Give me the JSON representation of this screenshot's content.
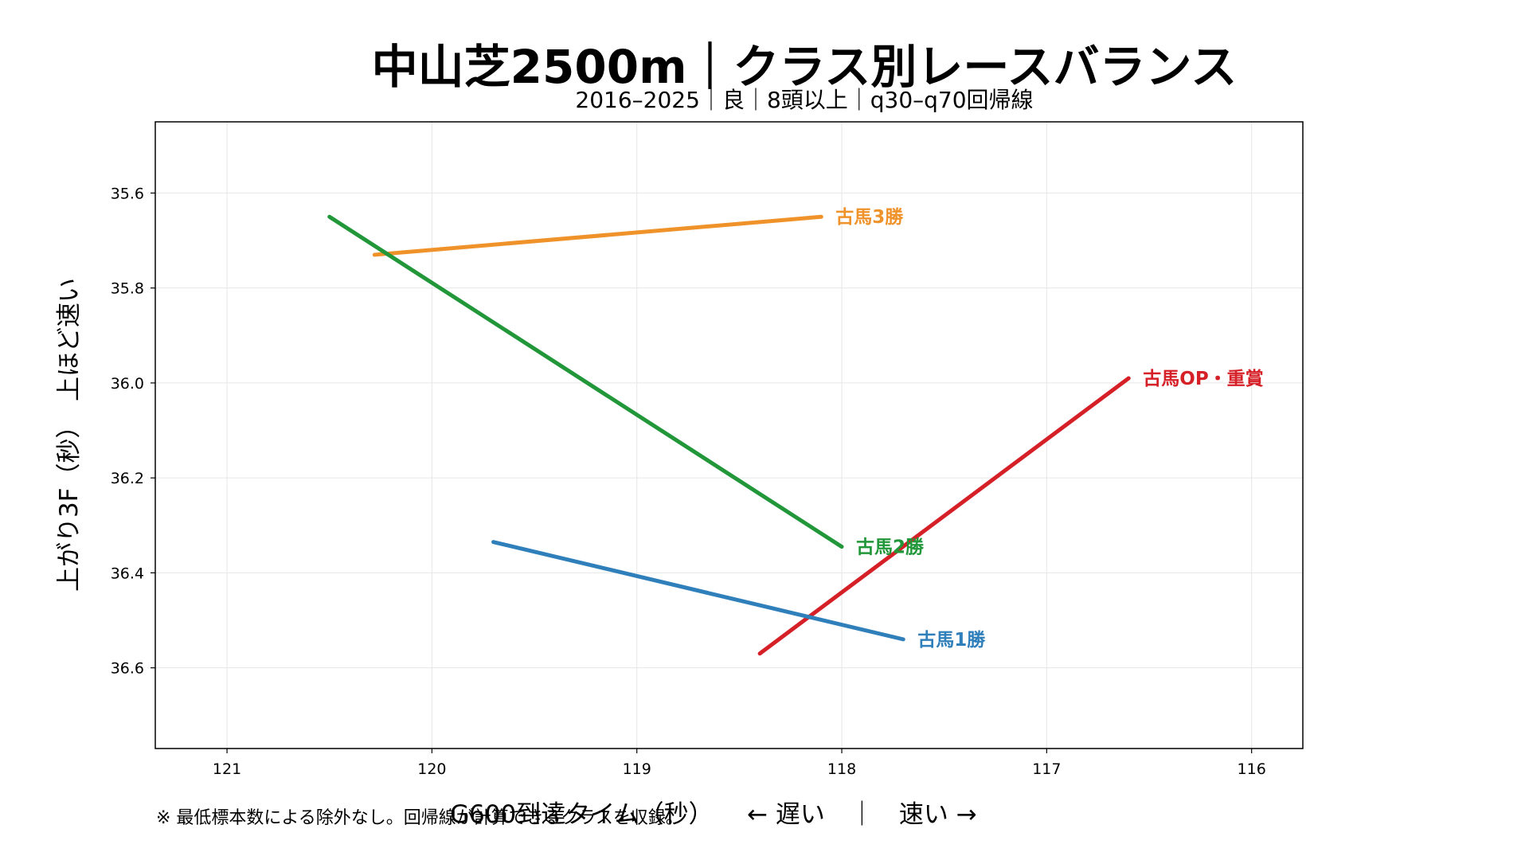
{
  "chart_data": {
    "type": "line",
    "title": "中山芝2500m｜クラス別レースバランス",
    "subtitle": "2016–2025｜良｜8頭以上｜q30–q70回帰線",
    "xlabel": "G600到達タイム（秒）",
    "xlabel_direction": "← 遅い　｜　速い →",
    "ylabel": "上がり3F（秒）　上ほど速い",
    "xlim": [
      121.35,
      115.75
    ],
    "ylim": [
      36.77,
      35.45
    ],
    "x_reversed": true,
    "y_reversed": true,
    "xticks": [
      121,
      120,
      119,
      118,
      117,
      116
    ],
    "yticks": [
      35.6,
      35.8,
      36.0,
      36.2,
      36.4,
      36.6
    ],
    "xtick_labels": [
      "121",
      "120",
      "119",
      "118",
      "117",
      "116"
    ],
    "ytick_labels": [
      "35.6",
      "35.8",
      "36.0",
      "36.2",
      "36.4",
      "36.6"
    ],
    "grid": true,
    "series": [
      {
        "name": "古馬3勝",
        "color": "#f0922a",
        "x": [
          120.28,
          118.1
        ],
        "y": [
          35.73,
          35.65
        ]
      },
      {
        "name": "古馬2勝",
        "color": "#22973a",
        "x": [
          120.5,
          118.0
        ],
        "y": [
          35.65,
          36.345
        ]
      },
      {
        "name": "古馬OP・重賞",
        "color": "#d62027",
        "x": [
          118.4,
          116.6
        ],
        "y": [
          36.57,
          35.99
        ]
      },
      {
        "name": "古馬1勝",
        "color": "#2f7fbb",
        "x": [
          119.7,
          117.7
        ],
        "y": [
          36.335,
          36.54
        ]
      }
    ],
    "footnote": "※ 最低標本数による除外なし。回帰線が計算できるクラスを収録。"
  }
}
